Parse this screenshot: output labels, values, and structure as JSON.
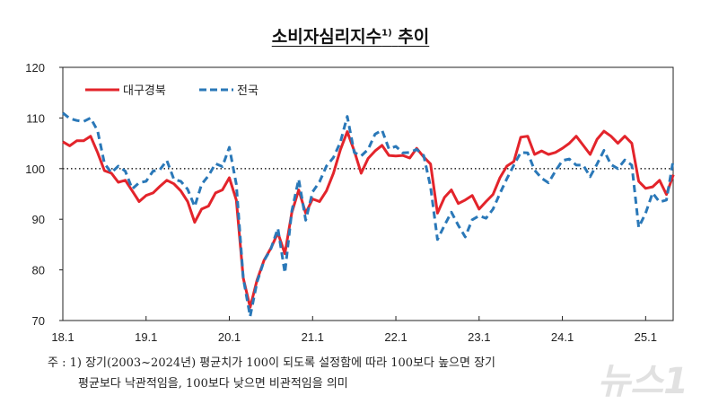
{
  "title": "소비자심리지수",
  "title_superscript": "1)",
  "title_suffix": "추이",
  "footnote_line1": "주 : 1) 장기(2003~2024년) 평균치가 100이 되도록 설정함에 따라 100보다 높으면 장기",
  "footnote_line2": "평균보다 낙관적임을, 100보다 낮으면 비관적임을 의미",
  "watermark": "뉴스1",
  "chart_data": {
    "type": "line",
    "title": "소비자심리지수1) 추이",
    "x_start": "2018-01",
    "x_end": "2025-05",
    "frequency": "monthly",
    "x_tick_labels": [
      "18.1",
      "19.1",
      "20.1",
      "21.1",
      "22.1",
      "23.1",
      "24.1",
      "25.1"
    ],
    "y_tick_labels": [
      "70",
      "80",
      "90",
      "100",
      "110",
      "120"
    ],
    "ylim": [
      70,
      120
    ],
    "reference_line": 100,
    "grid": false,
    "legend_placement": "top-left",
    "series": [
      {
        "name": "대구경북",
        "color": "#e3242b",
        "style": "solid",
        "values": [
          105.3,
          104.5,
          105.5,
          105.5,
          106.4,
          103.2,
          99.6,
          99.1,
          97.3,
          97.7,
          95.6,
          93.5,
          94.7,
          95.2,
          96.5,
          97.7,
          97.0,
          95.6,
          93.5,
          89.4,
          92.0,
          92.6,
          95.2,
          95.8,
          98.2,
          93.8,
          78.4,
          72.6,
          78.0,
          81.9,
          84.3,
          87.3,
          83.2,
          91.3,
          95.8,
          91.2,
          94.0,
          93.5,
          95.6,
          99.1,
          103.7,
          107.3,
          103.5,
          99.1,
          102.0,
          103.5,
          104.6,
          102.6,
          102.5,
          102.6,
          102.1,
          104.0,
          102.3,
          100.9,
          91.2,
          94.3,
          95.8,
          93.1,
          93.8,
          94.7,
          92.0,
          93.5,
          94.9,
          98.2,
          100.5,
          101.4,
          106.2,
          106.4,
          102.8,
          103.5,
          102.8,
          103.2,
          104.0,
          105.0,
          106.4,
          104.6,
          102.8,
          105.8,
          107.4,
          106.4,
          105.0,
          106.4,
          105.0,
          97.5,
          96.1,
          96.4,
          97.7,
          94.9,
          98.8
        ]
      },
      {
        "name": "전국",
        "color": "#2a78b8",
        "style": "dashed",
        "values": [
          111.0,
          109.9,
          109.5,
          109.3,
          110.0,
          107.5,
          101.0,
          99.2,
          100.5,
          99.5,
          96.0,
          97.2,
          97.5,
          99.5,
          99.8,
          101.6,
          97.9,
          97.5,
          95.9,
          92.5,
          96.9,
          98.6,
          101.0,
          100.4,
          104.2,
          96.9,
          78.4,
          70.8,
          77.6,
          81.8,
          84.2,
          88.2,
          79.4,
          91.6,
          97.9,
          89.8,
          95.4,
          97.4,
          100.5,
          102.2,
          105.2,
          110.3,
          103.2,
          102.5,
          103.8,
          106.8,
          107.6,
          103.9,
          104.4,
          103.1,
          103.2,
          103.8,
          102.6,
          96.4,
          86.0,
          88.8,
          91.4,
          88.8,
          86.5,
          89.9,
          90.7,
          90.2,
          92.0,
          95.1,
          98.0,
          100.7,
          103.2,
          103.1,
          99.7,
          98.1,
          97.2,
          99.5,
          101.6,
          101.9,
          100.7,
          100.7,
          98.4,
          100.9,
          103.6,
          100.8,
          100.0,
          101.7,
          100.7,
          88.4,
          91.2,
          95.2,
          93.4,
          93.8,
          101.8
        ]
      }
    ]
  }
}
